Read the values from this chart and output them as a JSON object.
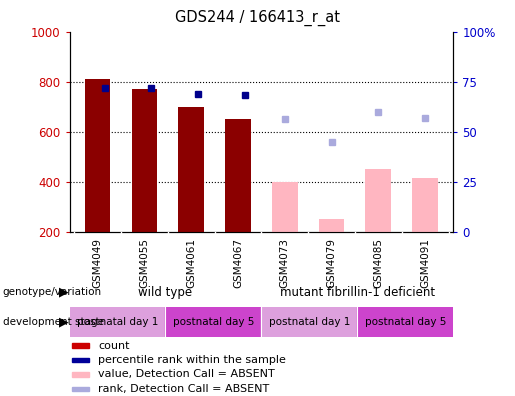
{
  "title": "GDS244 / 166413_r_at",
  "samples": [
    "GSM4049",
    "GSM4055",
    "GSM4061",
    "GSM4067",
    "GSM4073",
    "GSM4079",
    "GSM4085",
    "GSM4091"
  ],
  "count_values": [
    810,
    770,
    700,
    650,
    null,
    null,
    null,
    null
  ],
  "count_values_absent": [
    null,
    null,
    null,
    null,
    400,
    250,
    450,
    415
  ],
  "percentile_values": [
    775,
    775,
    750,
    748,
    null,
    null,
    null,
    null
  ],
  "percentile_values_absent": [
    null,
    null,
    null,
    null,
    650,
    560,
    680,
    655
  ],
  "ylim_left": [
    200,
    1000
  ],
  "ylim_right": [
    0,
    100
  ],
  "yticks_left": [
    200,
    400,
    600,
    800,
    1000
  ],
  "yticks_right": [
    0,
    25,
    50,
    75,
    100
  ],
  "bar_color_present": "#8B0000",
  "bar_color_absent": "#FFB6C1",
  "dot_color_present": "#00008B",
  "dot_color_absent": "#AAAADD",
  "legend_items": [
    {
      "label": "count",
      "color": "#CC0000"
    },
    {
      "label": "percentile rank within the sample",
      "color": "#000099"
    },
    {
      "label": "value, Detection Call = ABSENT",
      "color": "#FFB6C1"
    },
    {
      "label": "rank, Detection Call = ABSENT",
      "color": "#AAAADD"
    }
  ],
  "left_axis_color": "#CC0000",
  "right_axis_color": "#0000CC",
  "genotype_row_color": "#90EE90",
  "dev_stage_colors": [
    "#DDA0DD",
    "#CC44CC",
    "#DDA0DD",
    "#CC44CC"
  ],
  "dev_stage_labels": [
    "postnatal day 1",
    "postnatal day 5",
    "postnatal day 1",
    "postnatal day 5"
  ],
  "genotype_labels": [
    "wild type",
    "mutant fibrillin-1 deficient"
  ]
}
